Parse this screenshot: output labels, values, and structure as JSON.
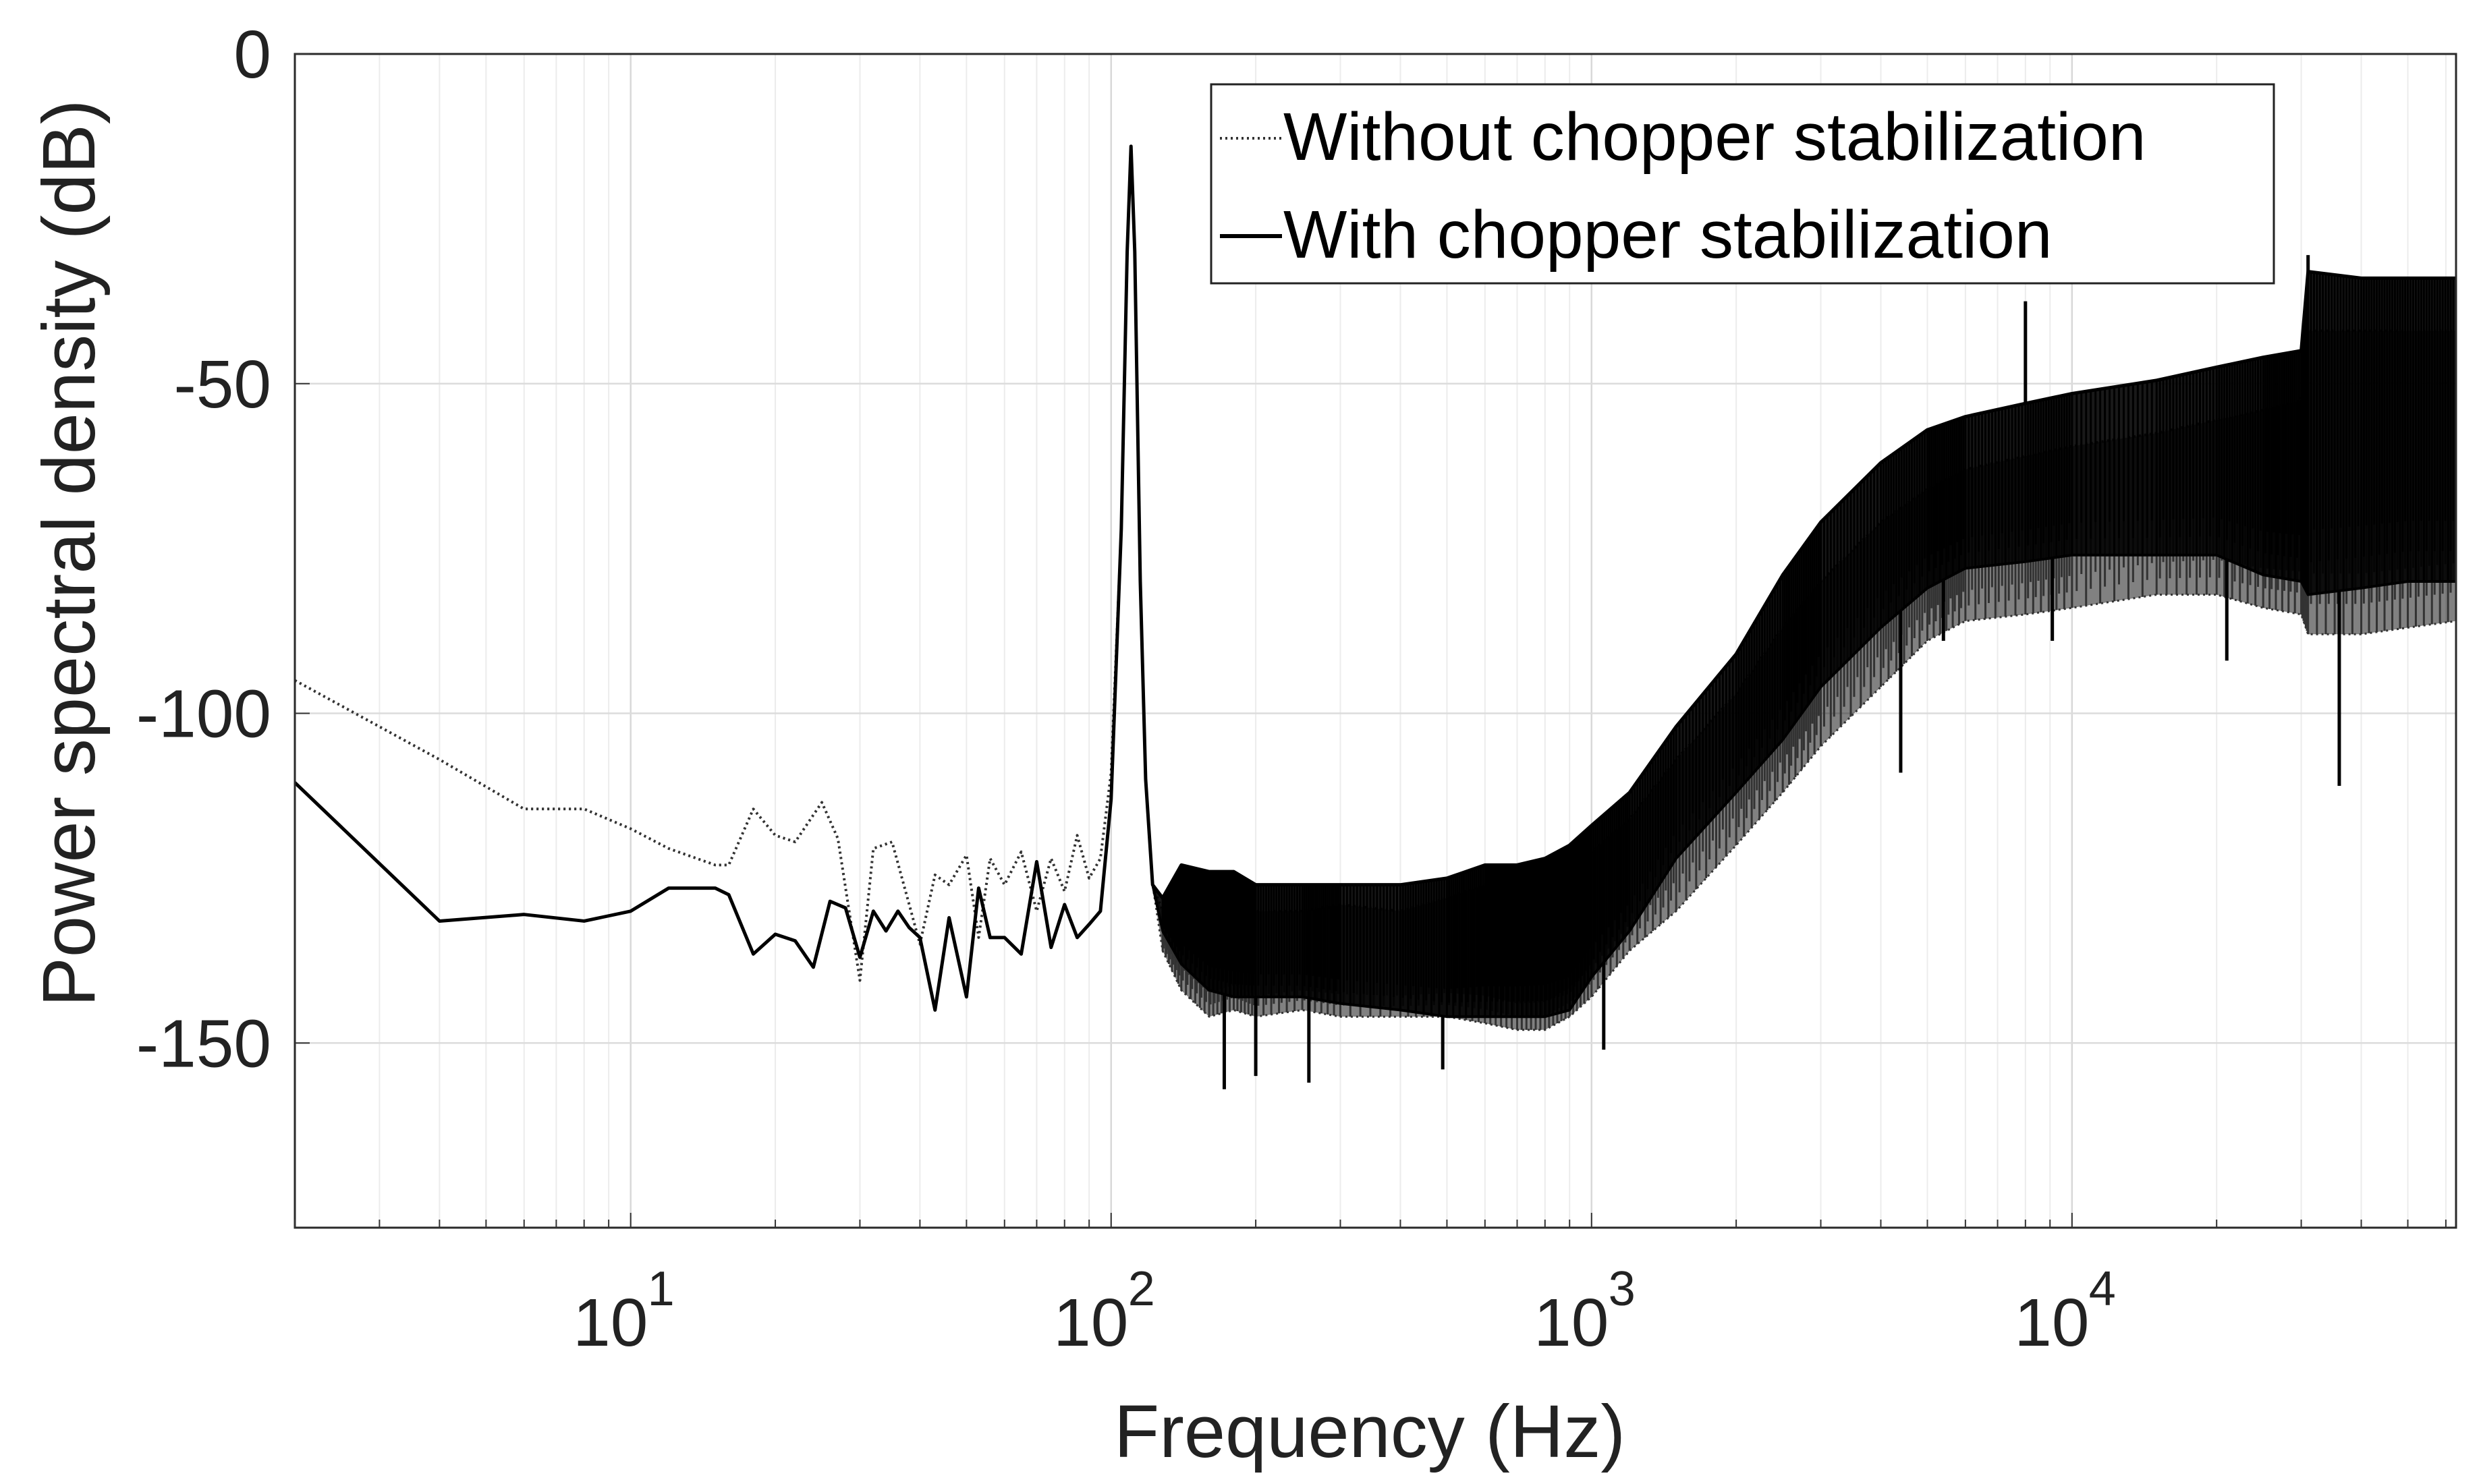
{
  "chart_data": {
    "type": "line",
    "title": "",
    "xlabel": "Frequency (Hz)",
    "ylabel": "Power spectral density (dB)",
    "xscale": "log",
    "xlim": [
      2,
      63000
    ],
    "ylim": [
      -178,
      0
    ],
    "grid": true,
    "legend_position": "top-right",
    "x_ticks": [
      {
        "value": 10,
        "base": "10",
        "exp": "1"
      },
      {
        "value": 100,
        "base": "10",
        "exp": "2"
      },
      {
        "value": 1000,
        "base": "10",
        "exp": "3"
      },
      {
        "value": 10000,
        "base": "10",
        "exp": "4"
      }
    ],
    "y_ticks": [
      {
        "value": 0,
        "label": "0"
      },
      {
        "value": -50,
        "label": "-50"
      },
      {
        "value": -100,
        "label": "-100"
      },
      {
        "value": -150,
        "label": "-150"
      }
    ],
    "series": [
      {
        "name": "Without chopper stabilization",
        "style": "dotted",
        "color": "#333333",
        "x": [
          2,
          4,
          6,
          8,
          10,
          12,
          15,
          16,
          18,
          20,
          22,
          25,
          27,
          30,
          32,
          35,
          38,
          40,
          43,
          46,
          50,
          53,
          56,
          60,
          65,
          70,
          75,
          80,
          85,
          90,
          95,
          100,
          105,
          108,
          110,
          112,
          115,
          118,
          122,
          128,
          140,
          160,
          180,
          200,
          250,
          300,
          400,
          500,
          600,
          700,
          800,
          900,
          1000,
          1200,
          1500,
          2000,
          2500,
          3000,
          4000,
          5000,
          6000,
          8000,
          10000,
          15000,
          20000,
          25000,
          30000,
          31000,
          40000,
          50000,
          63000
        ],
        "y": [
          -95,
          -107,
          -114.5,
          -114.5,
          -117.5,
          -120.5,
          -123,
          -123,
          -114.5,
          -118.5,
          -119.5,
          -113.5,
          -119,
          -140.5,
          -120.5,
          -119.5,
          -129,
          -135,
          -124.5,
          -126,
          -121.5,
          -134,
          -122,
          -126,
          -121,
          -130,
          -122,
          -127,
          -118.5,
          -125,
          -122,
          -109,
          -72,
          -30,
          -14,
          -30,
          -80,
          -110,
          -126,
          -130,
          -125,
          -128,
          -126,
          -130,
          -130,
          -129,
          -130,
          -128,
          -126,
          -128,
          -127,
          -124,
          -121,
          -116,
          -107,
          -97,
          -87,
          -80,
          -71,
          -66,
          -63,
          -61,
          -59.5,
          -57.5,
          -55.5,
          -54,
          -52.5,
          -42,
          -42,
          -42,
          -42
        ],
        "y_lower": [
          -95,
          -107,
          -114.5,
          -114.5,
          -117.5,
          -120.5,
          -123,
          -123,
          -114.5,
          -118.5,
          -119.5,
          -113.5,
          -119,
          -140.5,
          -120.5,
          -119.5,
          -129,
          -135,
          -124.5,
          -126,
          -121.5,
          -134,
          -122,
          -126,
          -121,
          -130,
          -122,
          -127,
          -118.5,
          -125,
          -122,
          -109,
          -72,
          -30,
          -14,
          -30,
          -80,
          -110,
          -126,
          -136,
          -142,
          -146,
          -145,
          -146,
          -145,
          -146,
          -146,
          -146,
          -147,
          -148,
          -148,
          -146,
          -143,
          -136,
          -130,
          -120,
          -112,
          -105,
          -96,
          -89,
          -86,
          -85,
          -84,
          -82,
          -82,
          -84,
          -85,
          -88,
          -88,
          -87,
          -86
        ]
      },
      {
        "name": "With chopper stabilization",
        "style": "solid",
        "color": "#000000",
        "x": [
          2,
          4,
          6,
          8,
          10,
          12,
          15,
          16,
          18,
          20,
          22,
          24,
          26,
          28,
          30,
          32,
          34,
          36,
          38,
          40,
          43,
          46,
          50,
          53,
          56,
          60,
          65,
          70,
          75,
          80,
          85,
          90,
          95,
          100,
          105,
          108,
          110,
          112,
          115,
          118,
          122,
          128,
          140,
          160,
          180,
          200,
          250,
          300,
          400,
          500,
          600,
          700,
          800,
          900,
          1000,
          1200,
          1500,
          2000,
          2500,
          3000,
          4000,
          5000,
          6000,
          8000,
          10000,
          15000,
          20000,
          25000,
          30000,
          31000,
          40000,
          50000,
          63000
        ],
        "y": [
          -110.5,
          -131.5,
          -130.5,
          -131.5,
          -130,
          -126.5,
          -126.5,
          -127.5,
          -136.5,
          -133.5,
          -134.5,
          -138.5,
          -128.5,
          -129.5,
          -137,
          -130,
          -133,
          -130,
          -132.5,
          -134,
          -145,
          -131,
          -143,
          -126.5,
          -134,
          -134,
          -136.5,
          -122.5,
          -135.5,
          -129,
          -134,
          -132,
          -130,
          -113,
          -72,
          -30,
          -14,
          -30,
          -80,
          -110,
          -126,
          -128,
          -123,
          -124,
          -124,
          -126,
          -126,
          -126,
          -126,
          -125,
          -123,
          -123,
          -122,
          -120,
          -117,
          -112,
          -102,
          -91,
          -79,
          -71,
          -62,
          -57,
          -55,
          -53,
          -51.5,
          -49.5,
          -47.5,
          -46,
          -45,
          -33,
          -34,
          -34,
          -34
        ],
        "y_lower": [
          -110.5,
          -131.5,
          -130.5,
          -131.5,
          -130,
          -126.5,
          -126.5,
          -127.5,
          -136.5,
          -133.5,
          -134.5,
          -138.5,
          -128.5,
          -129.5,
          -137,
          -130,
          -133,
          -130,
          -132.5,
          -134,
          -145,
          -131,
          -143,
          -126.5,
          -134,
          -134,
          -136.5,
          -122.5,
          -135.5,
          -129,
          -134,
          -132,
          -130,
          -113,
          -72,
          -30,
          -14,
          -30,
          -80,
          -110,
          -126,
          -133,
          -138,
          -142,
          -143,
          -143,
          -143,
          -144,
          -145,
          -146,
          -146,
          -146,
          -146,
          -145,
          -140,
          -133,
          -122,
          -112,
          -104,
          -96,
          -87,
          -81,
          -78,
          -77,
          -76,
          -76,
          -76,
          -79,
          -80,
          -82,
          -81,
          -80,
          -80
        ]
      }
    ],
    "spikes": [
      {
        "series": 1,
        "x": 172,
        "low": -157
      },
      {
        "series": 1,
        "x": 200,
        "low": -155
      },
      {
        "series": 1,
        "x": 258,
        "low": -156
      },
      {
        "series": 1,
        "x": 490,
        "low": -154
      },
      {
        "series": 1,
        "x": 1060,
        "low": -151
      },
      {
        "series": 1,
        "x": 4400,
        "low": -109
      },
      {
        "series": 1,
        "x": 5400,
        "low": -89
      },
      {
        "series": 1,
        "x": 8000,
        "high": -37.5
      },
      {
        "series": 1,
        "x": 9100,
        "low": -89
      },
      {
        "series": 1,
        "x": 21000,
        "low": -92
      },
      {
        "series": 1,
        "x": 36000,
        "low": -111
      },
      {
        "series": 1,
        "x": 31000,
        "high": -30.5
      }
    ]
  }
}
